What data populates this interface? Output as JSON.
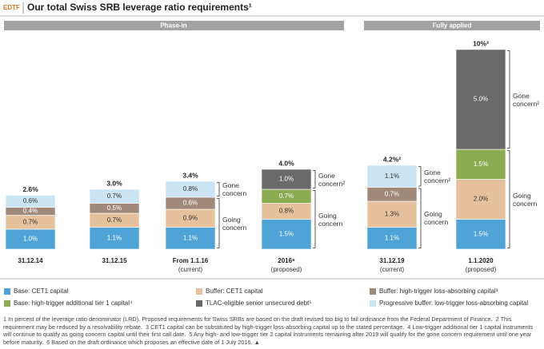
{
  "chart_data": {
    "type": "bar",
    "stacked": true,
    "tag": "EDTF",
    "title": "Our total Swiss SRB leverage ratio requirements¹",
    "phases": [
      "Phase-in",
      "Fully applied"
    ],
    "categories": [
      "31.12.14",
      "31.12.15",
      "From 1.1.16",
      "2016⁶",
      "31.12.19",
      "1.1.2020"
    ],
    "category_notes": [
      null,
      null,
      "(current)",
      "(proposed)",
      "(current)",
      "(proposed)"
    ],
    "series": [
      {
        "name": "Base: CET1 capital",
        "color": "#4fa3d6",
        "values": [
          1.0,
          1.1,
          1.1,
          1.5,
          1.1,
          1.5
        ],
        "value_labels": [
          "1.0%",
          "1.1%",
          "1.1%",
          "1.5%",
          "1.1%",
          "1.5%"
        ]
      },
      {
        "name": "Buffer: CET1 capital",
        "color": "#e6c19e",
        "values": [
          0.7,
          0.7,
          0.9,
          0.8,
          1.3,
          2.0
        ],
        "value_labels": [
          "0.7%",
          "0.7%",
          "0.9%",
          "0.8%",
          "1.3%",
          "2.0%"
        ]
      },
      {
        "name": "Buffer: high-trigger loss-absorbing capital³",
        "color": "#a18979",
        "values": [
          0.4,
          0.5,
          0.6,
          null,
          0.7,
          null
        ],
        "value_labels": [
          "0.4%",
          "0.5%",
          "0.6%",
          null,
          "0.7%",
          null
        ]
      },
      {
        "name": "Base: high-trigger additional tier 1 capital⁴",
        "color": "#8dac52",
        "values": [
          null,
          null,
          null,
          0.7,
          null,
          1.5
        ],
        "value_labels": [
          null,
          null,
          null,
          "0.7%",
          null,
          "1.5%"
        ]
      },
      {
        "name": "TLAC-eligible senior unsecured debt⁵",
        "color": "#696969",
        "values": [
          null,
          null,
          null,
          1.0,
          null,
          5.0
        ],
        "value_labels": [
          null,
          null,
          null,
          "1.0%",
          null,
          "5.0%"
        ]
      },
      {
        "name": "Progressive buffer: low-trigger loss-absorbing capital",
        "color": "#cbe4f4",
        "values": [
          0.6,
          0.7,
          0.8,
          null,
          1.1,
          null
        ],
        "value_labels": [
          "0.6%",
          "0.7%",
          "0.8%",
          null,
          "1.1%",
          null
        ]
      }
    ],
    "totals": [
      2.6,
      3.0,
      3.4,
      4.0,
      4.2,
      10
    ],
    "total_labels": [
      "2.6%",
      "3.0%",
      "3.4%",
      "4.0%",
      "4.2%²",
      "10%²"
    ],
    "concern_labels": [
      null,
      null,
      {
        "gone": "Gone concern",
        "going": "Going concern"
      },
      {
        "gone": "Gone concern²",
        "going": "Going concern"
      },
      {
        "gone": "Gone concern²",
        "going": "Going concern"
      },
      {
        "gone": "Gone concern²",
        "going": "Going concern"
      }
    ]
  },
  "footnotes": [
    "1 In percent of the leverage ratio denominator (LRD). Proposed requirements for Swiss SRBs are based on the draft revised too big to fail ordinance from the Federal Department of Finance.",
    "2 This requirement may be reduced by a resolvability rebate.",
    "3 CET1 capital can be substituted by high-trigger loss-absorbing capital up to the stated percentage.",
    "4 Low-trigger additional tier 1 capital instruments will continue to qualify as going concern capital until their first call date.",
    "5 Any high- and low-trigger tier 2 capital instruments remaining after 2019 will qualify for the gone concern requirement until one year before maturity.",
    "6 Based on the draft ordinance which proposes an effective date of 1 July 2016. ▲"
  ]
}
